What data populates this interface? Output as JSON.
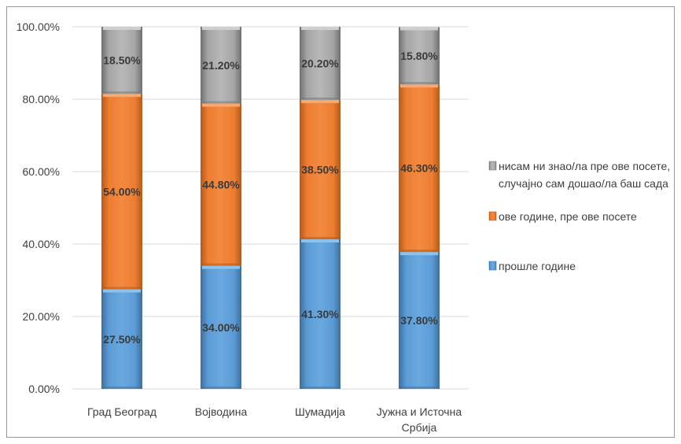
{
  "chart_data": {
    "type": "bar",
    "stacked": true,
    "title": "",
    "xlabel": "",
    "ylabel": "",
    "ylim": [
      0,
      100
    ],
    "y_ticks": [
      "0.00%",
      "20.00%",
      "40.00%",
      "60.00%",
      "80.00%",
      "100.00%"
    ],
    "grid": true,
    "legend_position": "right",
    "categories": [
      [
        "Град Београд"
      ],
      [
        "Војводина"
      ],
      [
        "Шумадија"
      ],
      [
        "Јужна и Источна",
        "Србија"
      ]
    ],
    "series": [
      {
        "name": "прошле године",
        "color": "#5b9bd5",
        "values": [
          27.5,
          34.0,
          41.3,
          37.8
        ],
        "labels": [
          "27.50%",
          "34.00%",
          "41.30%",
          "37.80%"
        ]
      },
      {
        "name": "ове године, пре ове посете",
        "color": "#ed7d31",
        "values": [
          54.0,
          44.8,
          38.5,
          46.3
        ],
        "labels": [
          "54.00%",
          "44.80%",
          "38.50%",
          "46.30%"
        ]
      },
      {
        "name": [
          "нисам ни знао/ла пре ове посете,",
          "случајно сам дошао/ла баш сада"
        ],
        "color": "#a5a5a5",
        "values": [
          18.5,
          21.2,
          20.2,
          15.8
        ],
        "labels": [
          "18.50%",
          "21.20%",
          "20.20%",
          "15.80%"
        ]
      }
    ]
  }
}
